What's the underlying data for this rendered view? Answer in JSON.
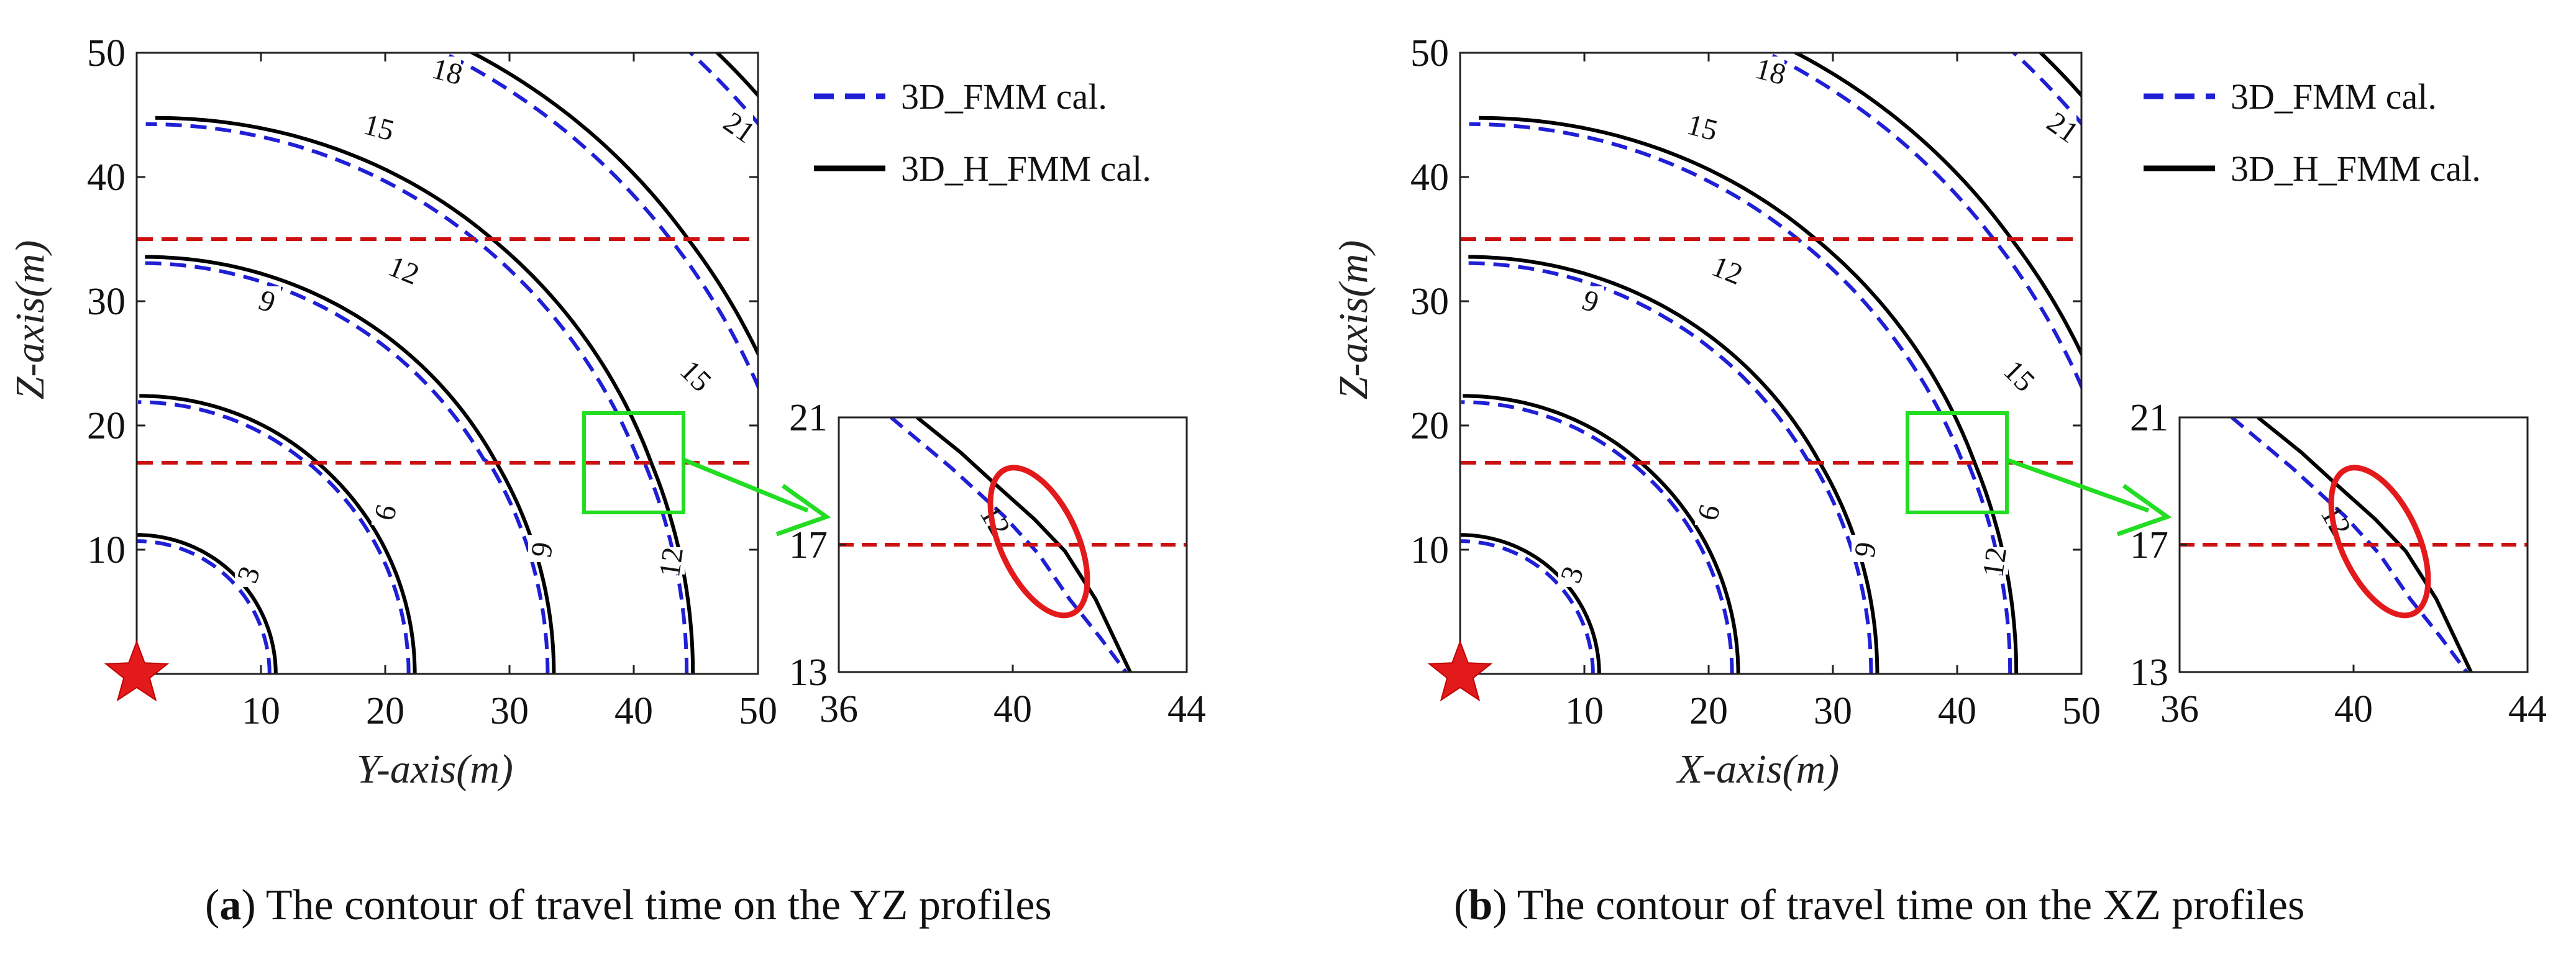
{
  "chart_data": [
    {
      "type": "contour",
      "panel_letter": "a",
      "caption": "The contour of travel time on the YZ profiles",
      "xlabel": "Y-axis(m)",
      "ylabel": "Z-axis(m)",
      "xlim": [
        0,
        50
      ],
      "ylim": [
        0,
        50
      ],
      "xticks": [
        "10",
        "20",
        "30",
        "40",
        "50"
      ],
      "yticks": [
        "10",
        "20",
        "30",
        "40",
        "50"
      ],
      "contour_levels": [
        "3",
        "6",
        "9",
        "12",
        "15",
        "18",
        "21"
      ],
      "series": [
        {
          "name": "3D_FMM cal.",
          "style": "dashed",
          "color": "#1f1fd6"
        },
        {
          "name": "3D_H_FMM cal.",
          "style": "solid",
          "color": "#000000"
        }
      ],
      "reference_lines_z": [
        17,
        35
      ],
      "source_marker": {
        "x": 0,
        "y": 0,
        "shape": "star",
        "color": "#e31a1c"
      },
      "zoom_box": {
        "xlim": [
          36,
          44
        ],
        "ylim": [
          13,
          21
        ]
      },
      "inset": {
        "xlim": [
          36,
          44
        ],
        "ylim": [
          13,
          21
        ],
        "xticks": [
          "36",
          "40",
          "44"
        ],
        "yticks": [
          "13",
          "17",
          "21"
        ],
        "contour_label": "12",
        "highlight": {
          "cx": 40.6,
          "cy": 17.1,
          "color": "#e31a1c"
        }
      }
    },
    {
      "type": "contour",
      "panel_letter": "b",
      "caption": "The contour of travel time on the XZ profiles",
      "xlabel": "X-axis(m)",
      "ylabel": "Z-axis(m)",
      "xlim": [
        0,
        50
      ],
      "ylim": [
        0,
        50
      ],
      "xticks": [
        "10",
        "20",
        "30",
        "40",
        "50"
      ],
      "yticks": [
        "10",
        "20",
        "30",
        "40",
        "50"
      ],
      "contour_levels": [
        "3",
        "6",
        "9",
        "12",
        "15",
        "18",
        "21"
      ],
      "series": [
        {
          "name": "3D_FMM cal.",
          "style": "dashed",
          "color": "#1f1fd6"
        },
        {
          "name": "3D_H_FMM cal.",
          "style": "solid",
          "color": "#000000"
        }
      ],
      "reference_lines_z": [
        17,
        35
      ],
      "source_marker": {
        "x": 0,
        "y": 0,
        "shape": "star",
        "color": "#e31a1c"
      },
      "zoom_box": {
        "xlim": [
          36,
          44
        ],
        "ylim": [
          13,
          21
        ]
      },
      "inset": {
        "xlim": [
          36,
          44
        ],
        "ylim": [
          13,
          21
        ],
        "xticks": [
          "36",
          "40",
          "44"
        ],
        "yticks": [
          "13",
          "17",
          "21"
        ],
        "contour_label": "12",
        "highlight": {
          "cx": 40.6,
          "cy": 17.1,
          "color": "#e31a1c"
        }
      }
    }
  ]
}
